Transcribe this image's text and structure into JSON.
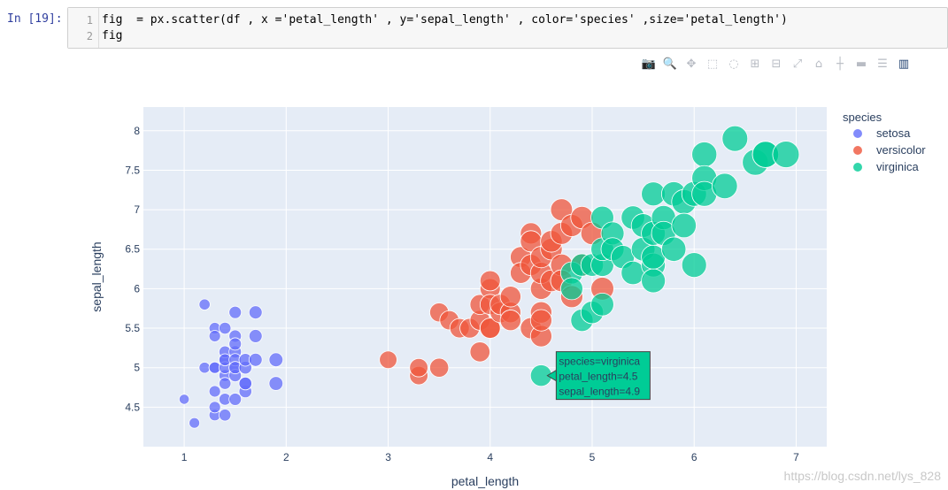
{
  "cell": {
    "prompt": "In [19]:",
    "lines": [
      {
        "no": "1",
        "text": "fig  = px.scatter(df , x ='petal_length' , y='sepal_length' , color='species' ,size='petal_length')"
      },
      {
        "no": "2",
        "text": "fig"
      }
    ]
  },
  "toolbar": {
    "icons": [
      "camera-icon",
      "zoom-icon",
      "pan-icon",
      "box-select-icon",
      "lasso-icon",
      "zoom-in-icon",
      "zoom-out-icon",
      "autoscale-icon",
      "home-icon",
      "spike-lines-icon",
      "hover-closest-icon",
      "hover-compare-icon",
      "plotly-logo-icon"
    ]
  },
  "chart_data": {
    "type": "scatter",
    "xlabel": "petal_length",
    "ylabel": "sepal_length",
    "xlim": [
      0.6,
      7.3
    ],
    "ylim": [
      4.0,
      8.3
    ],
    "xticks": [
      "1",
      "2",
      "3",
      "4",
      "5",
      "6",
      "7"
    ],
    "yticks": [
      "4.5",
      "5",
      "5.5",
      "6",
      "6.5",
      "7",
      "7.5",
      "8"
    ],
    "legend_title": "species",
    "legend_placement": "right",
    "size_by": "petal_length",
    "series": [
      {
        "name": "setosa",
        "color": "#636efa",
        "points": [
          [
            1.0,
            4.6
          ],
          [
            1.1,
            4.3
          ],
          [
            1.2,
            5.8
          ],
          [
            1.2,
            5.0
          ],
          [
            1.3,
            5.5
          ],
          [
            1.3,
            5.4
          ],
          [
            1.3,
            4.4
          ],
          [
            1.3,
            4.5
          ],
          [
            1.3,
            4.7
          ],
          [
            1.3,
            5.0
          ],
          [
            1.3,
            5.0
          ],
          [
            1.4,
            5.1
          ],
          [
            1.4,
            4.9
          ],
          [
            1.4,
            5.2
          ],
          [
            1.4,
            5.5
          ],
          [
            1.4,
            4.6
          ],
          [
            1.4,
            4.4
          ],
          [
            1.4,
            4.8
          ],
          [
            1.4,
            5.0
          ],
          [
            1.4,
            5.1
          ],
          [
            1.5,
            5.0
          ],
          [
            1.5,
            5.4
          ],
          [
            1.5,
            5.7
          ],
          [
            1.5,
            5.2
          ],
          [
            1.5,
            5.3
          ],
          [
            1.5,
            4.9
          ],
          [
            1.5,
            5.1
          ],
          [
            1.5,
            4.6
          ],
          [
            1.5,
            5.0
          ],
          [
            1.6,
            4.7
          ],
          [
            1.6,
            5.0
          ],
          [
            1.6,
            4.8
          ],
          [
            1.6,
            5.1
          ],
          [
            1.6,
            4.8
          ],
          [
            1.7,
            5.7
          ],
          [
            1.7,
            5.4
          ],
          [
            1.7,
            5.1
          ],
          [
            1.9,
            5.1
          ],
          [
            1.9,
            4.8
          ]
        ]
      },
      {
        "name": "versicolor",
        "color": "#ef553b",
        "points": [
          [
            3.0,
            5.1
          ],
          [
            3.3,
            4.9
          ],
          [
            3.3,
            5.0
          ],
          [
            3.5,
            5.7
          ],
          [
            3.5,
            5.0
          ],
          [
            3.6,
            5.6
          ],
          [
            3.7,
            5.5
          ],
          [
            3.8,
            5.5
          ],
          [
            3.9,
            5.2
          ],
          [
            3.9,
            5.6
          ],
          [
            3.9,
            5.8
          ],
          [
            4.0,
            6.0
          ],
          [
            4.0,
            6.1
          ],
          [
            4.0,
            5.5
          ],
          [
            4.0,
            5.8
          ],
          [
            4.0,
            5.5
          ],
          [
            4.1,
            5.7
          ],
          [
            4.1,
            5.8
          ],
          [
            4.2,
            5.7
          ],
          [
            4.2,
            5.6
          ],
          [
            4.2,
            5.9
          ],
          [
            4.3,
            6.4
          ],
          [
            4.3,
            6.2
          ],
          [
            4.4,
            6.7
          ],
          [
            4.4,
            6.3
          ],
          [
            4.4,
            6.6
          ],
          [
            4.4,
            5.5
          ],
          [
            4.5,
            5.4
          ],
          [
            4.5,
            5.7
          ],
          [
            4.5,
            6.0
          ],
          [
            4.5,
            5.6
          ],
          [
            4.5,
            6.2
          ],
          [
            4.5,
            6.4
          ],
          [
            4.6,
            6.5
          ],
          [
            4.6,
            6.6
          ],
          [
            4.6,
            6.1
          ],
          [
            4.7,
            6.7
          ],
          [
            4.7,
            6.3
          ],
          [
            4.7,
            6.1
          ],
          [
            4.7,
            7.0
          ],
          [
            4.8,
            6.8
          ],
          [
            4.8,
            5.9
          ],
          [
            4.9,
            6.3
          ],
          [
            4.9,
            6.9
          ],
          [
            5.0,
            6.7
          ],
          [
            5.1,
            6.0
          ]
        ]
      },
      {
        "name": "virginica",
        "color": "#00cc96",
        "points": [
          [
            4.5,
            4.9
          ],
          [
            4.8,
            6.2
          ],
          [
            4.8,
            6.0
          ],
          [
            4.9,
            5.6
          ],
          [
            4.9,
            6.3
          ],
          [
            5.0,
            5.7
          ],
          [
            5.0,
            6.3
          ],
          [
            5.1,
            5.8
          ],
          [
            5.1,
            6.9
          ],
          [
            5.1,
            6.3
          ],
          [
            5.1,
            6.5
          ],
          [
            5.2,
            6.7
          ],
          [
            5.2,
            6.5
          ],
          [
            5.3,
            6.4
          ],
          [
            5.4,
            6.2
          ],
          [
            5.4,
            6.9
          ],
          [
            5.5,
            6.5
          ],
          [
            5.5,
            6.8
          ],
          [
            5.6,
            6.3
          ],
          [
            5.6,
            6.1
          ],
          [
            5.6,
            6.4
          ],
          [
            5.6,
            7.2
          ],
          [
            5.6,
            6.7
          ],
          [
            5.7,
            6.9
          ],
          [
            5.7,
            6.7
          ],
          [
            5.8,
            7.2
          ],
          [
            5.8,
            6.5
          ],
          [
            5.9,
            7.1
          ],
          [
            5.9,
            6.8
          ],
          [
            6.0,
            6.3
          ],
          [
            6.0,
            7.2
          ],
          [
            6.1,
            7.7
          ],
          [
            6.1,
            7.4
          ],
          [
            6.1,
            7.2
          ],
          [
            6.3,
            7.3
          ],
          [
            6.4,
            7.9
          ],
          [
            6.6,
            7.6
          ],
          [
            6.7,
            7.7
          ],
          [
            6.7,
            7.7
          ],
          [
            6.9,
            7.7
          ]
        ]
      }
    ],
    "hover": {
      "species": "virginica",
      "petal_length": 4.5,
      "sepal_length": 4.9,
      "lines": [
        "species=virginica",
        "petal_length=4.5",
        "sepal_length=4.9"
      ]
    }
  },
  "watermark": "https://blog.csdn.net/lys_828"
}
